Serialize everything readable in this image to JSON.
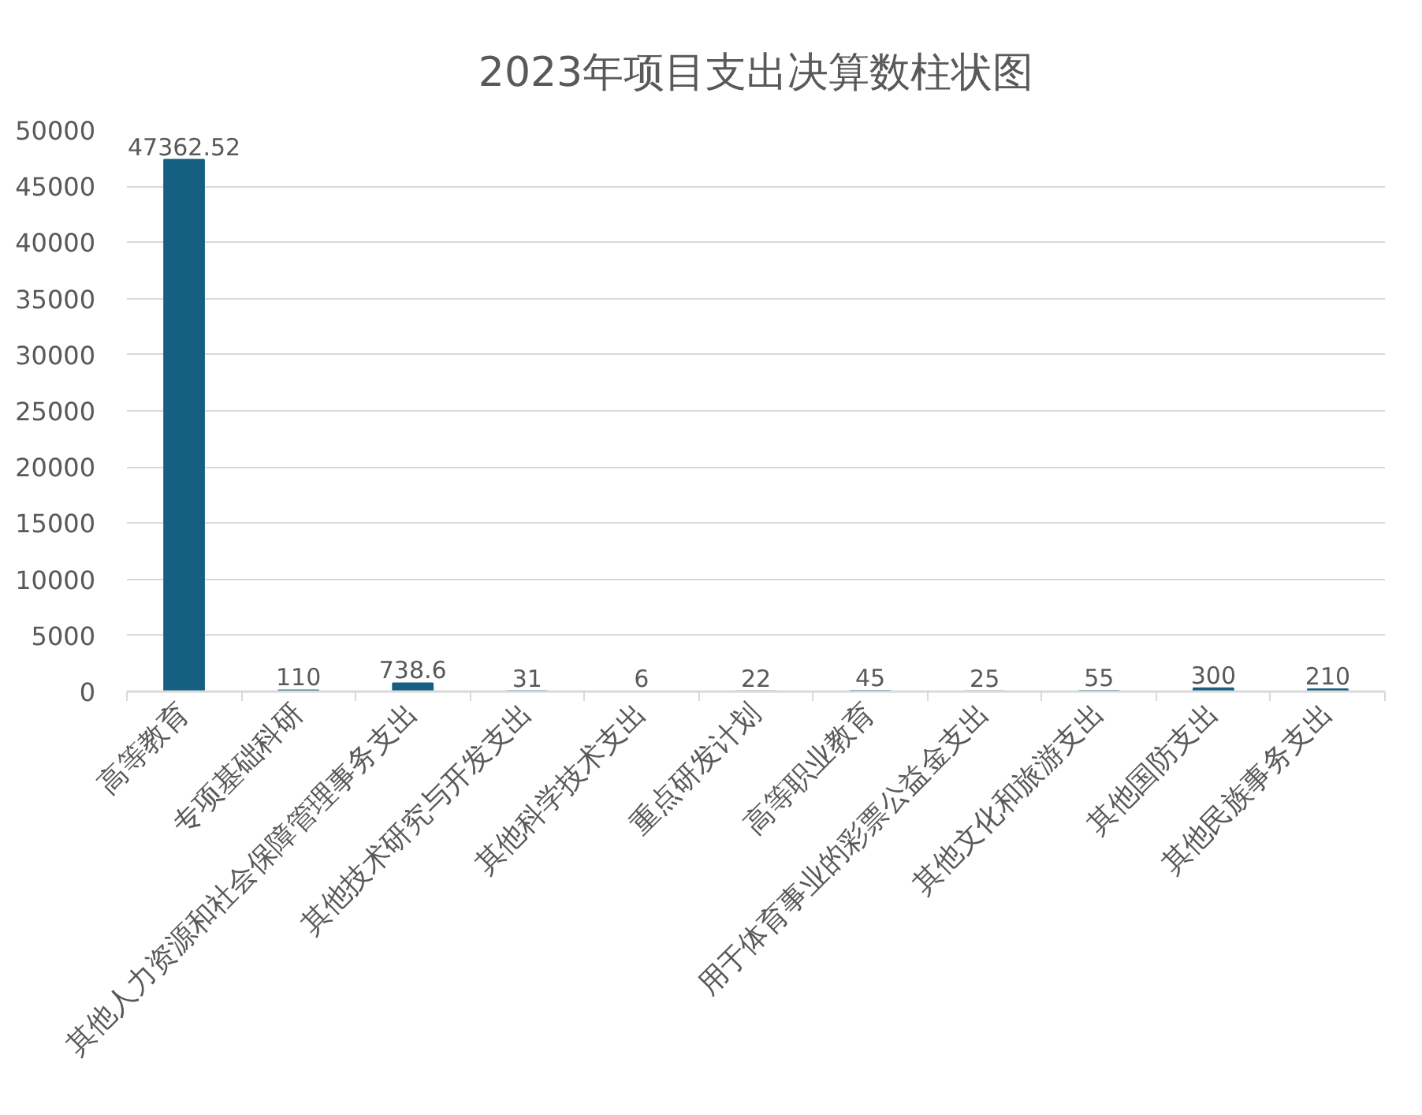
{
  "chart_data": {
    "type": "bar",
    "title": "2023年项目支出决算数柱状图",
    "categories": [
      "高等教育",
      "专项基础科研",
      "其他人力资源和社会保障管理事务支出",
      "其他技术研究与开发支出",
      "其他科学技术支出",
      "重点研发计划",
      "高等职业教育",
      "用于体育事业的彩票公益金支出",
      "其他文化和旅游支出",
      "其他国防支出",
      "其他民族事务支出"
    ],
    "values": [
      47362.52,
      110,
      738.6,
      31,
      6,
      22,
      45,
      25,
      55,
      300,
      210
    ],
    "color": "#156082",
    "ylim": [
      0,
      50000
    ],
    "yticks": [
      0,
      5000,
      10000,
      15000,
      20000,
      25000,
      30000,
      35000,
      40000,
      45000,
      50000
    ],
    "grid": "y",
    "data_labels": true
  }
}
